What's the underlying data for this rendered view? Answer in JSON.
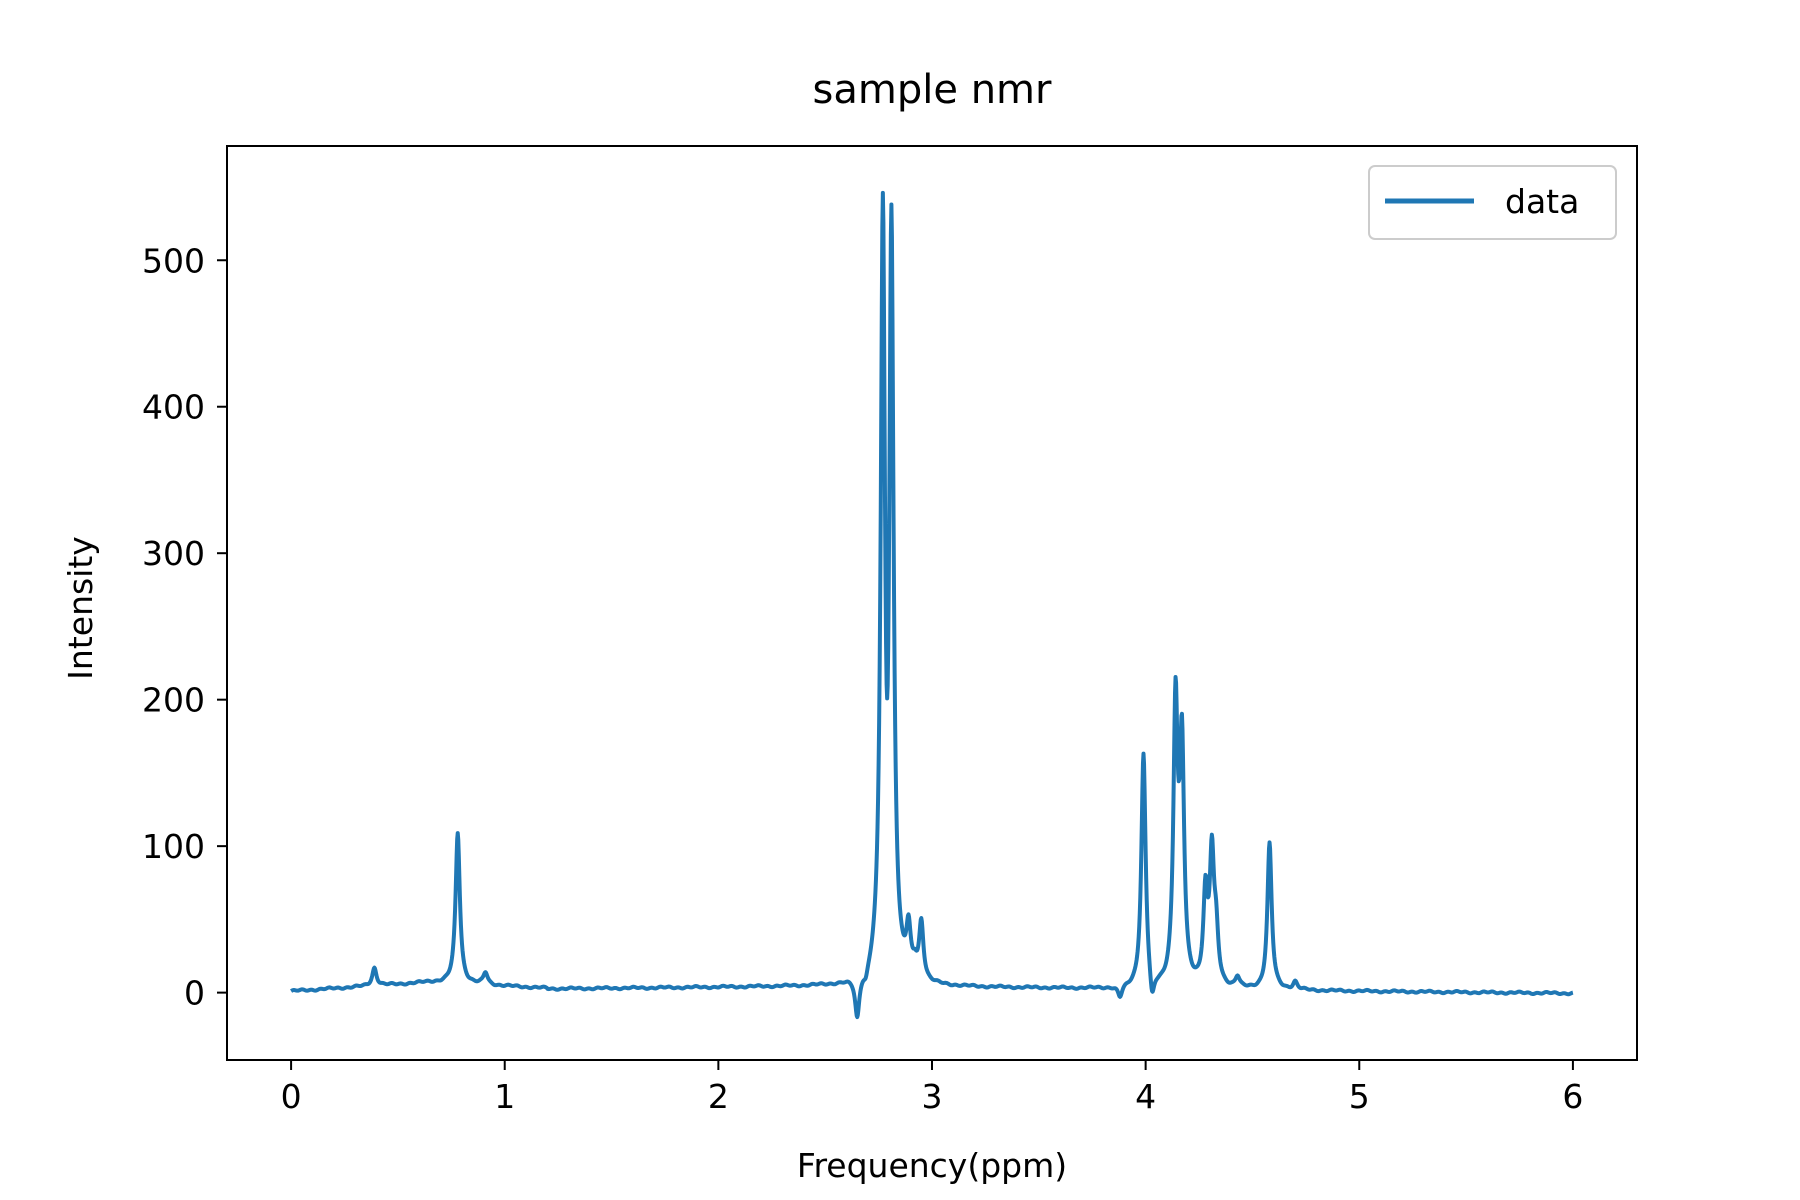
{
  "chart_data": {
    "type": "line",
    "title": "sample nmr",
    "xlabel": "Frequency(ppm)",
    "ylabel": "Intensity",
    "xlim": [
      -0.3,
      6.3
    ],
    "ylim": [
      -46,
      578
    ],
    "x_ticks": [
      0,
      1,
      2,
      3,
      4,
      5,
      6
    ],
    "y_ticks": [
      0,
      100,
      200,
      300,
      400,
      500
    ],
    "grid": false,
    "legend": {
      "position": "top-right",
      "entries": [
        "data"
      ]
    },
    "series": [
      {
        "name": "data",
        "color": "#1f77b4",
        "peaks": [
          {
            "x": 0.39,
            "y": 17
          },
          {
            "x": 0.78,
            "y": 109
          },
          {
            "x": 0.91,
            "y": 14
          },
          {
            "x": 2.65,
            "y": -17
          },
          {
            "x": 2.69,
            "y": 10
          },
          {
            "x": 2.77,
            "y": 551
          },
          {
            "x": 2.79,
            "y": 195
          },
          {
            "x": 2.81,
            "y": 540
          },
          {
            "x": 2.89,
            "y": 53
          },
          {
            "x": 2.92,
            "y": 30
          },
          {
            "x": 2.95,
            "y": 51
          },
          {
            "x": 3.88,
            "y": -3
          },
          {
            "x": 3.99,
            "y": 163
          },
          {
            "x": 4.03,
            "y": 0
          },
          {
            "x": 4.14,
            "y": 218
          },
          {
            "x": 4.16,
            "y": 148
          },
          {
            "x": 4.17,
            "y": 192
          },
          {
            "x": 4.28,
            "y": 80
          },
          {
            "x": 4.31,
            "y": 108
          },
          {
            "x": 4.33,
            "y": 62
          },
          {
            "x": 4.43,
            "y": 12
          },
          {
            "x": 4.58,
            "y": 102
          },
          {
            "x": 4.7,
            "y": 8
          }
        ],
        "range": [
          0,
          6
        ]
      }
    ]
  }
}
